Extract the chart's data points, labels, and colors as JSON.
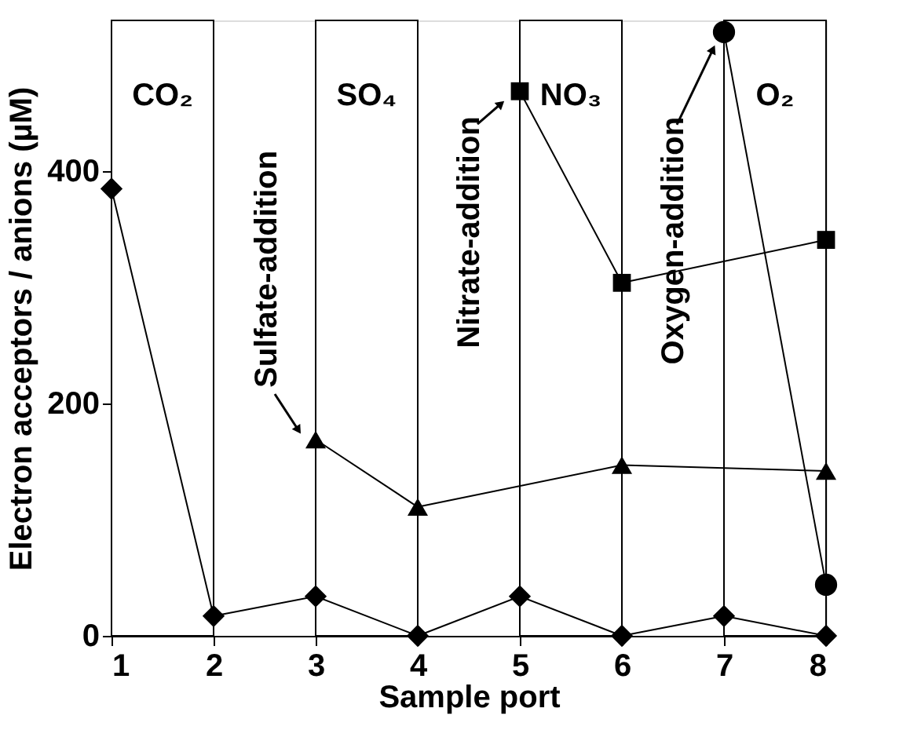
{
  "chart_data": {
    "type": "line",
    "xlabel": "Sample port",
    "ylabel": "Electron acceptors / anions (µM)",
    "xlim": [
      1,
      8
    ],
    "xticks": [
      1,
      2,
      3,
      4,
      5,
      6,
      7,
      8
    ],
    "ylim": [
      0,
      530
    ],
    "yticks": [
      0,
      200,
      400
    ],
    "grid": false,
    "line_style": "solid",
    "series": [
      {
        "color": "#000000",
        "marker": "diamond",
        "x": [
          1,
          2,
          3,
          4,
          5,
          6,
          7,
          8
        ],
        "values": [
          385,
          17,
          34,
          0,
          34,
          0,
          17,
          0
        ]
      },
      {
        "color": "#000000",
        "marker": "triangle",
        "x": [
          3,
          4,
          6,
          8
        ],
        "values": [
          169,
          111,
          147,
          142
        ]
      },
      {
        "color": "#000000",
        "marker": "square",
        "x": [
          5,
          6,
          8
        ],
        "values": [
          469,
          304,
          341
        ]
      },
      {
        "color": "#000000",
        "marker": "circle",
        "x": [
          7,
          8
        ],
        "values": [
          520,
          44
        ]
      }
    ],
    "bands": [
      {
        "axis": "x",
        "from": 1,
        "to": 2,
        "label": "CO₂",
        "color": "#ffffff"
      },
      {
        "axis": "x",
        "from": 3,
        "to": 4,
        "label": "SO₄",
        "color": "#ffffff"
      },
      {
        "axis": "x",
        "from": 5,
        "to": 6,
        "label": "NO₃",
        "color": "#ffffff"
      },
      {
        "axis": "x",
        "from": 7,
        "to": 8,
        "label": "O₂",
        "color": "#ffffff"
      }
    ],
    "annotations": [
      {
        "text": "Sulfate-addition",
        "x": 3,
        "y": 169
      },
      {
        "text": "Nitrate-addition",
        "x": 5,
        "y": 469
      },
      {
        "text": "Oxygen-addition",
        "x": 7,
        "y": 520
      }
    ]
  }
}
